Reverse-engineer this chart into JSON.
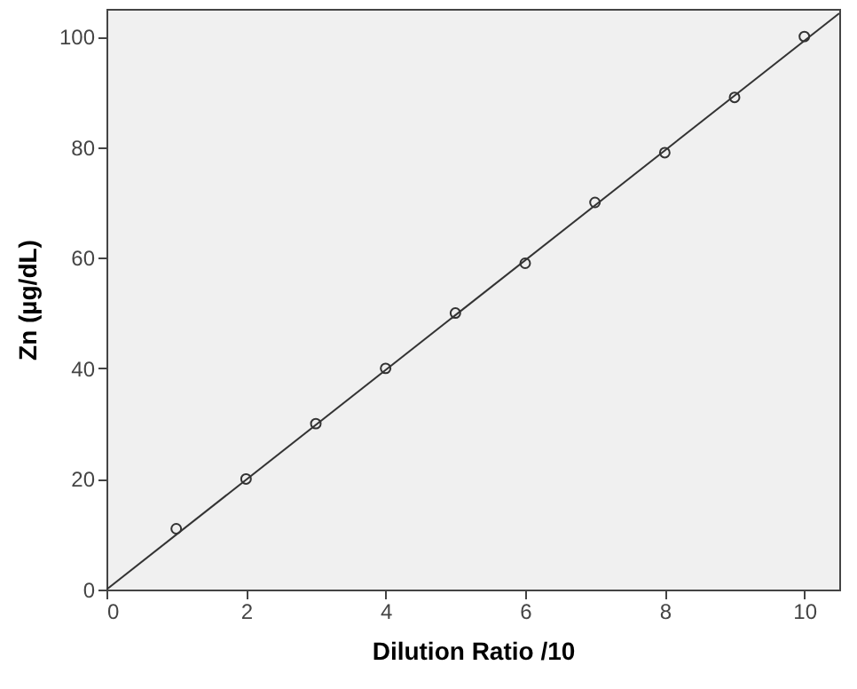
{
  "chart_data": {
    "type": "scatter",
    "xlabel": "Dilution Ratio /10",
    "ylabel": "Zn (µg/dL)",
    "x": [
      1,
      2,
      3,
      4,
      5,
      6,
      7,
      8,
      9,
      10
    ],
    "series": [
      {
        "color": "#333333",
        "marker": "circle",
        "values": [
          11,
          20,
          30,
          40,
          50,
          59,
          70,
          79,
          89,
          100
        ]
      },
      {
        "type": "line",
        "marker": "none",
        "color": "#333333",
        "x": [
          0,
          10.5
        ],
        "values": [
          0,
          104.2
        ]
      }
    ],
    "xlim": [
      0,
      10.5
    ],
    "xticks": [
      0,
      2,
      4,
      6,
      8,
      10
    ],
    "ylim": [
      0,
      105
    ],
    "yticks": [
      0,
      20,
      40,
      60,
      80,
      100
    ],
    "grid": false,
    "line_style": "solid"
  }
}
